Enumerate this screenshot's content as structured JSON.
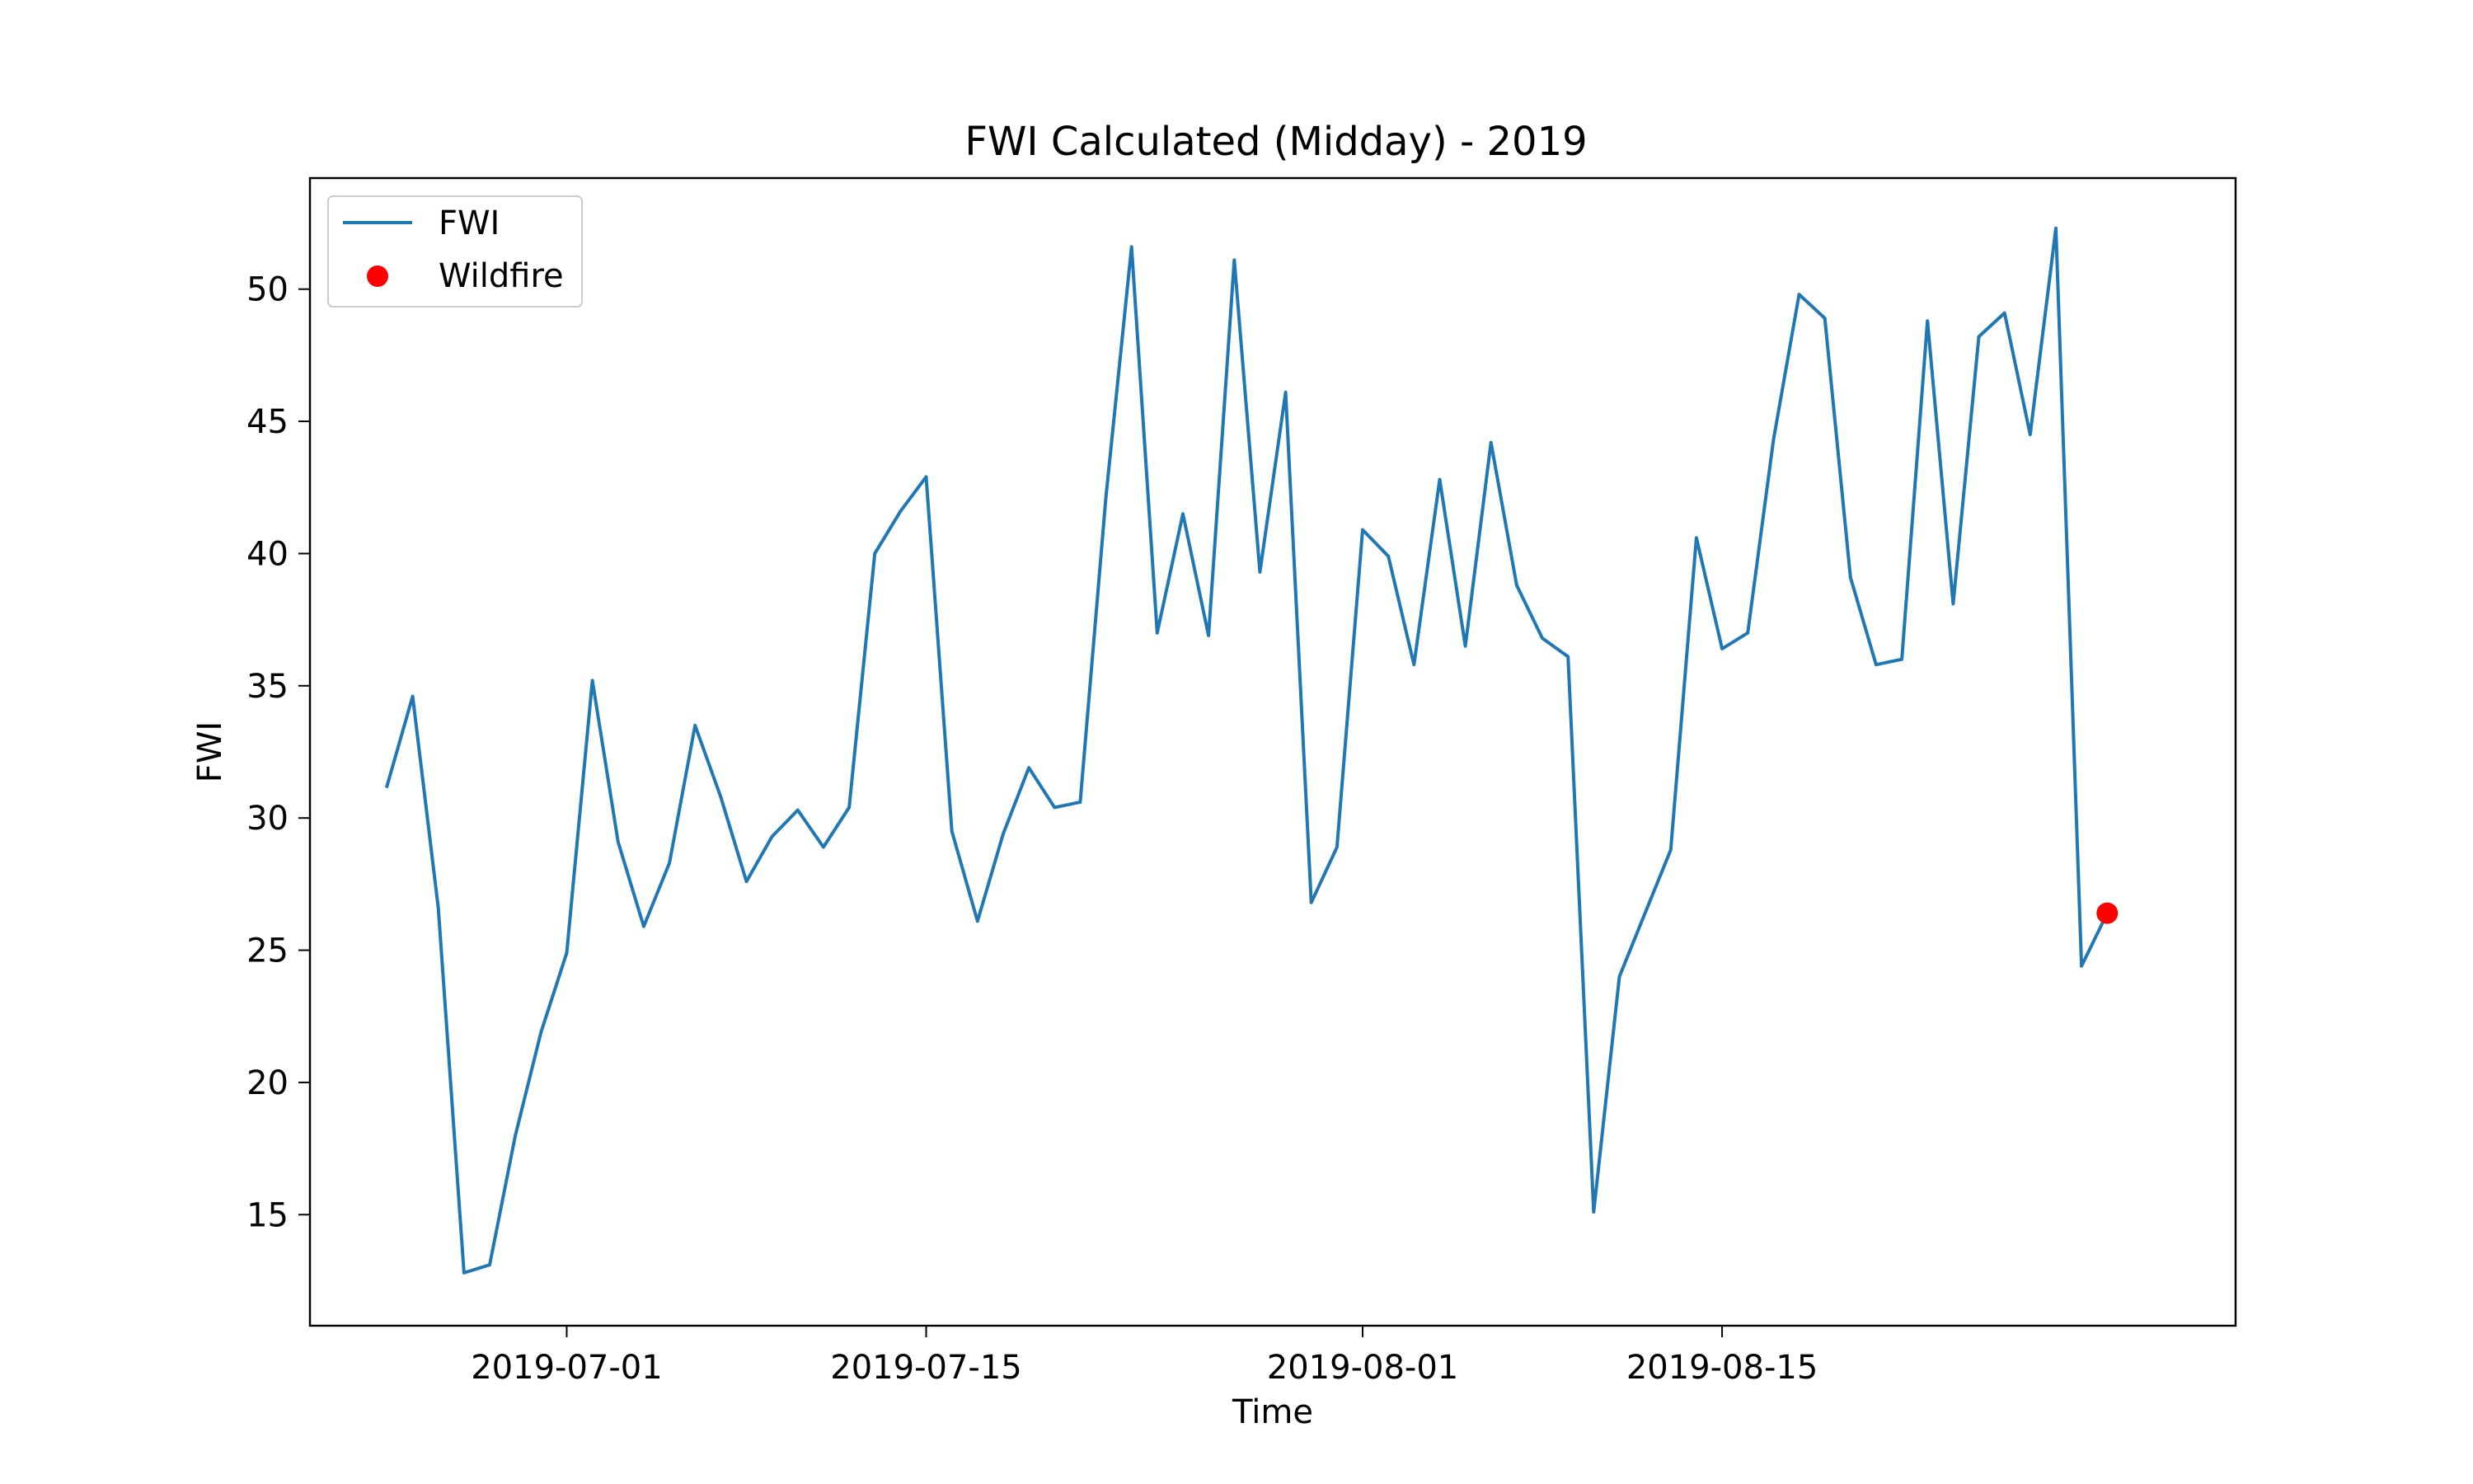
{
  "chart_data": {
    "type": "line",
    "title": "FWI Calculated (Midday) - 2019",
    "xlabel": "Time",
    "ylabel": "FWI",
    "x_start": "2019-06-24",
    "x_ticks": [
      "2019-07-01",
      "2019-07-15",
      "2019-08-01",
      "2019-08-15"
    ],
    "xlim": [
      "2019-06-21",
      "2019-09-04"
    ],
    "ylim": [
      10.8,
      54.2
    ],
    "y_ticks": [
      15,
      20,
      25,
      30,
      35,
      40,
      45,
      50
    ],
    "grid": false,
    "legend_position": "top-left",
    "colors": {
      "fwi": "#1f77b4",
      "wildfire": "#ff0000"
    },
    "series": [
      {
        "name": "FWI",
        "values": [
          31.2,
          34.6,
          26.6,
          12.8,
          13.1,
          18.0,
          21.9,
          24.9,
          35.2,
          29.1,
          25.9,
          28.3,
          33.5,
          30.8,
          27.6,
          29.3,
          30.3,
          28.9,
          30.4,
          40.0,
          41.6,
          42.9,
          29.5,
          26.1,
          29.4,
          31.9,
          30.4,
          30.6,
          42.1,
          51.6,
          37.0,
          41.5,
          36.9,
          51.1,
          39.3,
          46.1,
          26.8,
          28.9,
          40.9,
          39.9,
          35.8,
          42.8,
          36.5,
          44.2,
          38.8,
          36.8,
          36.1,
          15.1,
          24.0,
          26.4,
          28.8,
          40.6,
          36.4,
          37.0,
          44.3,
          49.8,
          48.9,
          39.1,
          35.8,
          36.0,
          48.8,
          38.1,
          48.2,
          49.1,
          44.5,
          52.3,
          24.4,
          26.4
        ]
      },
      {
        "name": "Wildfire",
        "points": [
          {
            "x": "2019-08-30",
            "y": 26.4
          }
        ]
      }
    ]
  }
}
